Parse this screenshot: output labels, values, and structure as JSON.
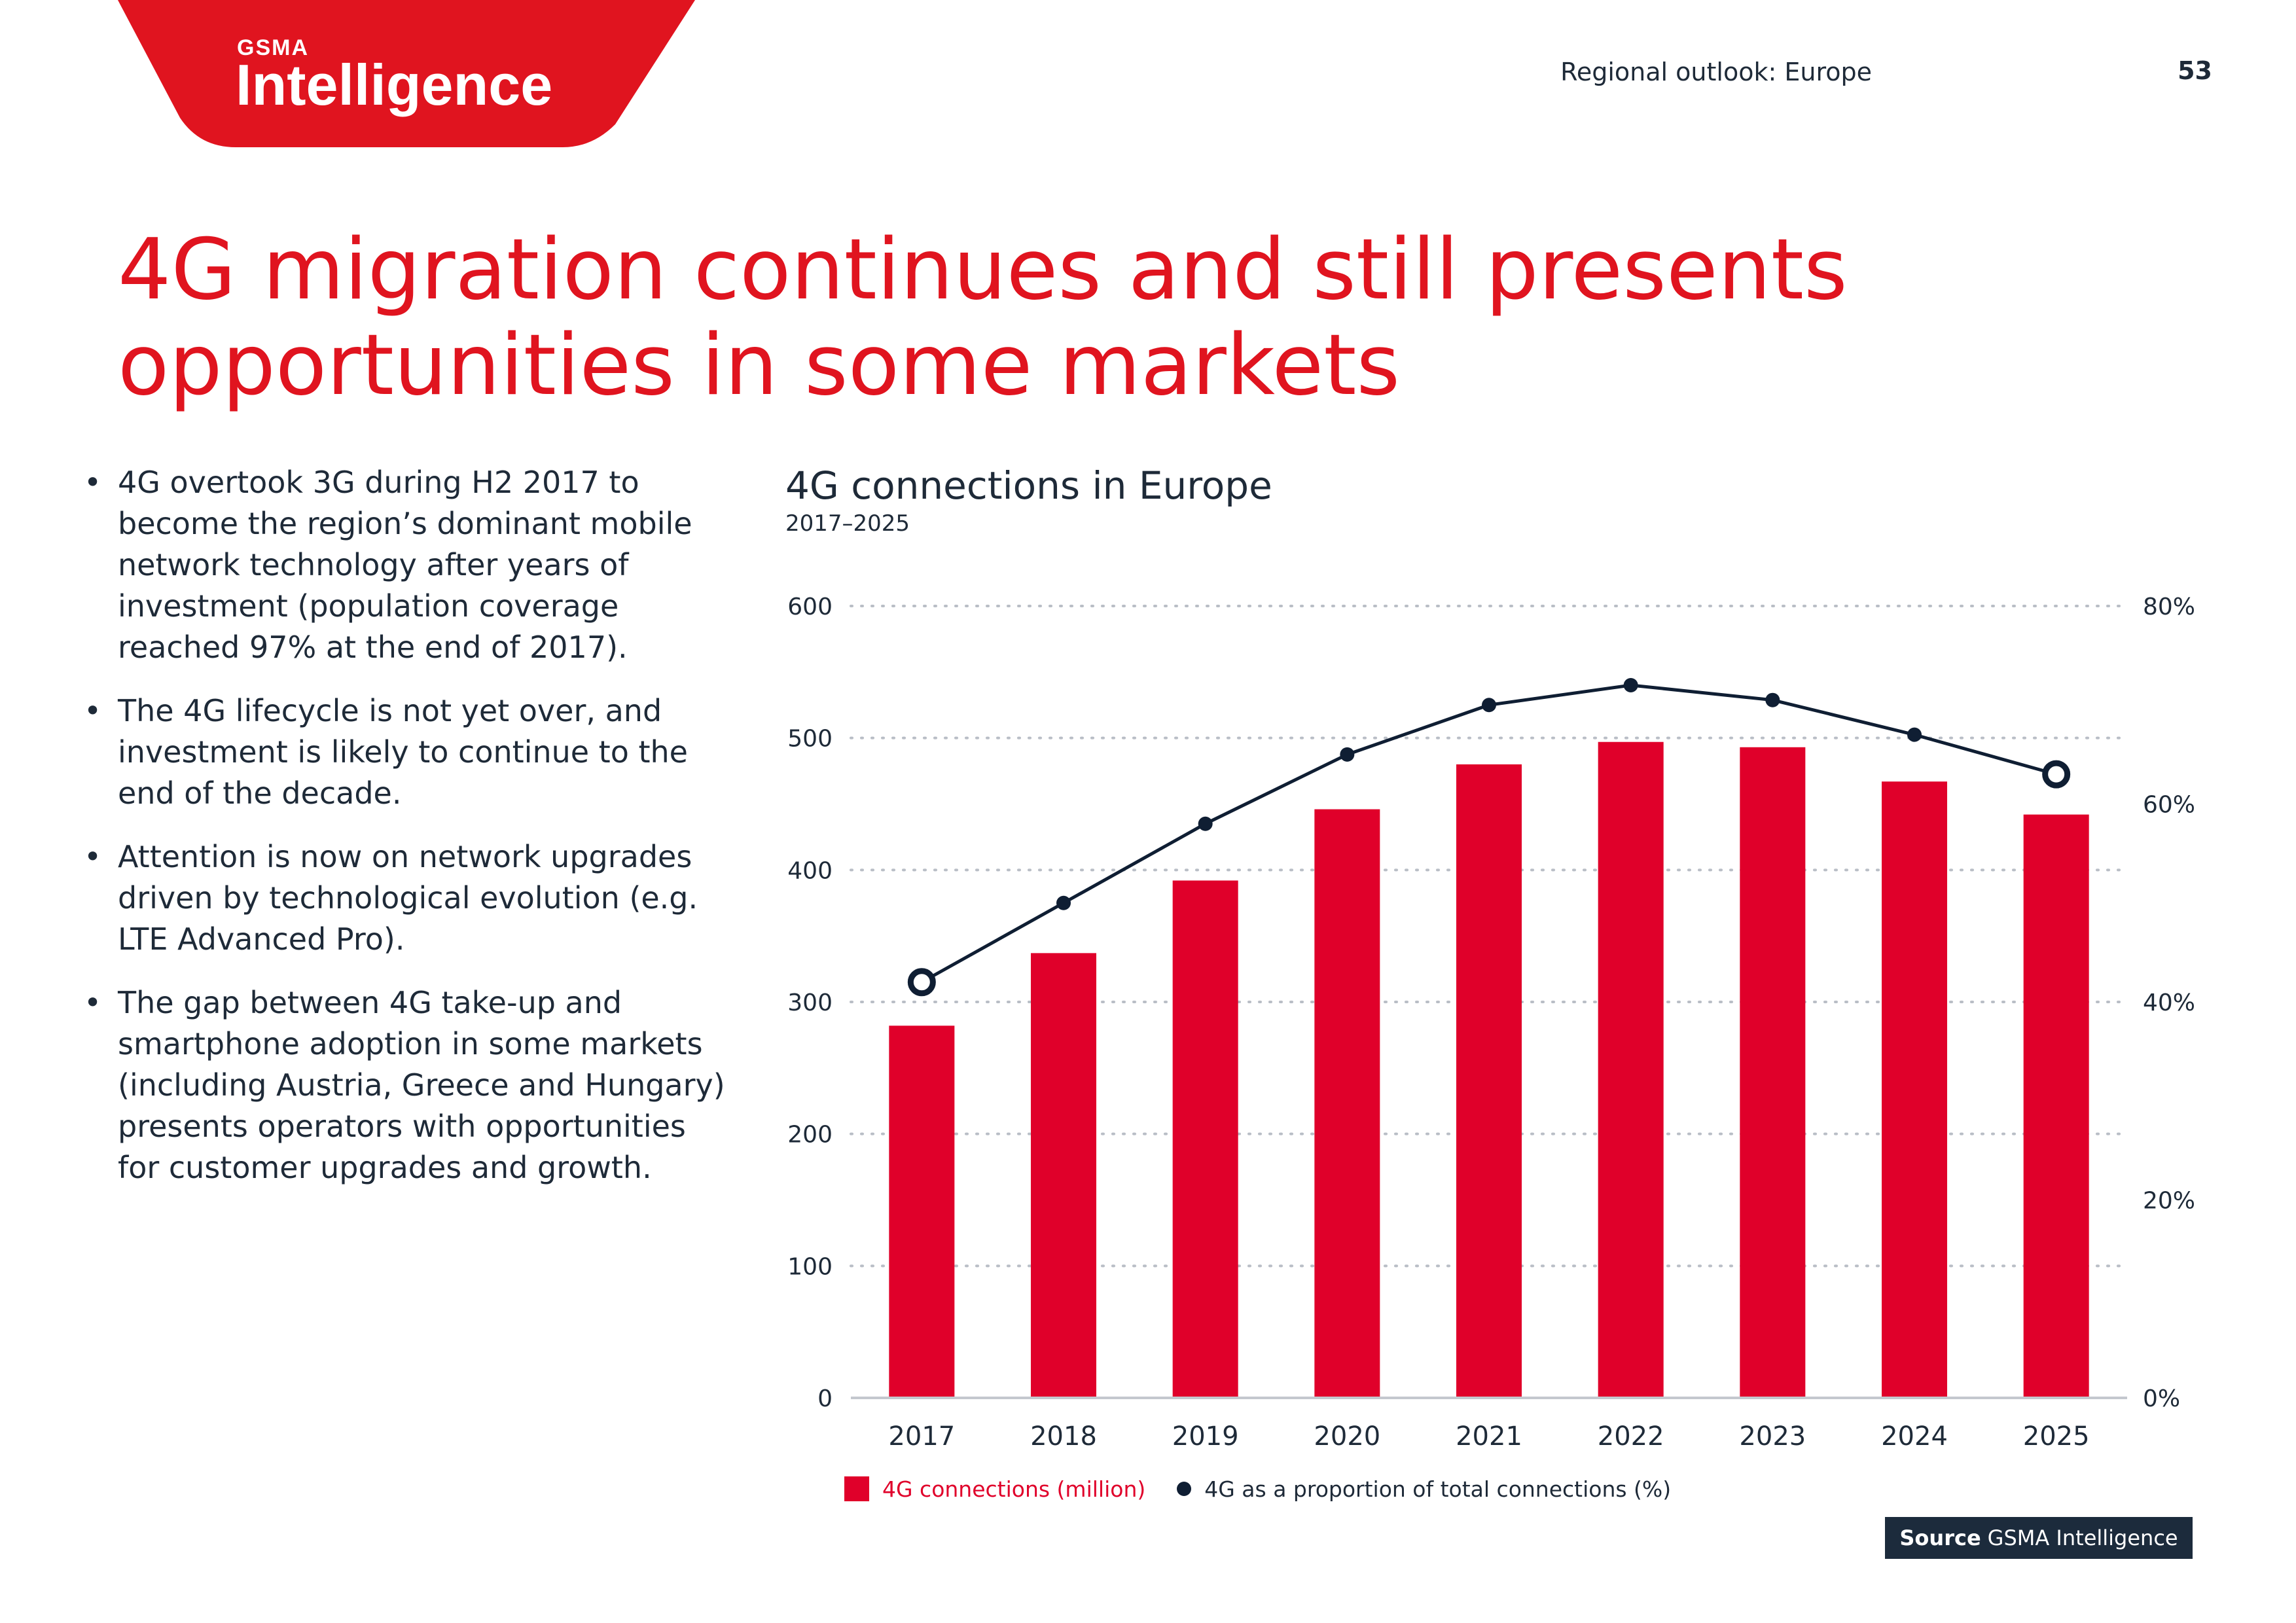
{
  "header": {
    "brand_top": "GSMA",
    "brand_main": "Intelligence",
    "section": "Regional outlook: Europe",
    "page_number": "53"
  },
  "title_lines": [
    "4G migration continues and still presents",
    "opportunities in some markets"
  ],
  "bullets": [
    "4G overtook 3G during H2 2017 to become the region’s dominant mobile network technology after years of investment (population coverage reached 97% at the end of 2017).",
    "The 4G lifecycle is not yet over, and investment is likely to continue to the end of the decade.",
    "Attention is now on network upgrades driven by technological evolution (e.g. LTE Advanced Pro).",
    "The gap between 4G take-up and smartphone adoption in some markets (including Austria, Greece and Hungary) presents operators with opportunities for customer upgrades and growth."
  ],
  "bullet_symbol": "•",
  "source": {
    "label": "Source",
    "text": "GSMA Intelligence"
  },
  "colors": {
    "brand_red": "#e0141f",
    "bar": "#e0002a",
    "line": "#0f1e33",
    "text": "#1e2a38",
    "source_bg": "#1c2b3c"
  },
  "chart_data": {
    "type": "bar",
    "title": "4G connections in Europe",
    "subtitle": "2017–2025",
    "categories": [
      "2017",
      "2018",
      "2019",
      "2020",
      "2021",
      "2022",
      "2023",
      "2024",
      "2025"
    ],
    "series": [
      {
        "name": "4G connections (million)",
        "type": "bar",
        "axis": "left",
        "values": [
          282,
          337,
          392,
          446,
          480,
          497,
          493,
          467,
          442
        ]
      },
      {
        "name": "4G as a proportion of total connections (%)",
        "type": "line",
        "axis": "right",
        "values": [
          42,
          50,
          58,
          65,
          70,
          72,
          70.5,
          67,
          63
        ],
        "hollow_points": [
          "2017",
          "2025"
        ]
      }
    ],
    "y_left": {
      "min": 0,
      "max": 600,
      "ticks": [
        0,
        100,
        200,
        300,
        400,
        500,
        600
      ],
      "labels": [
        "0",
        "100",
        "200",
        "300",
        "400",
        "500",
        "600"
      ]
    },
    "y_right": {
      "min": 0,
      "max": 80,
      "ticks": [
        0,
        20,
        40,
        60,
        80
      ],
      "labels": [
        "0%",
        "20%",
        "40%",
        "60%",
        "80%"
      ]
    },
    "grid": "dotted",
    "legend_position": "bottom-left"
  }
}
